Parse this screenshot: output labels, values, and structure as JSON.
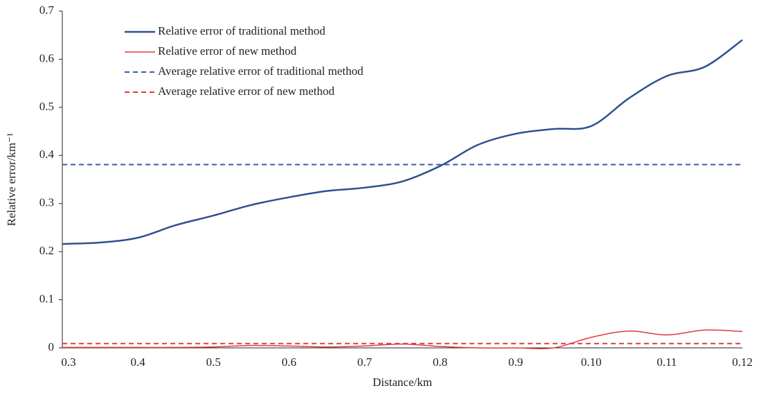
{
  "chart_data": {
    "type": "line",
    "x_label": "Distance/km",
    "y_label": "Relative error/km⁻¹",
    "categories": [
      "0.3",
      null,
      "0.4",
      null,
      "0.5",
      null,
      "0.6",
      null,
      "0.7",
      null,
      "0.8",
      null,
      "0.9",
      null,
      "0.10",
      null,
      "0.11",
      null,
      "0.12"
    ],
    "series": [
      {
        "name": "Relative error of traditional method",
        "color": "#2e4f91",
        "width": 2.5,
        "values": [
          0.216,
          0.219,
          0.229,
          0.255,
          0.275,
          0.297,
          0.313,
          0.326,
          0.333,
          0.346,
          0.378,
          0.422,
          0.445,
          0.455,
          0.461,
          0.519,
          0.565,
          0.584,
          0.64
        ]
      },
      {
        "name": "Relative error of new method",
        "color": "#e0393e",
        "width": 1.5,
        "values": [
          0.001,
          0.001,
          0.001,
          0.001,
          0.002,
          0.005,
          0.004,
          0.002,
          0.004,
          0.008,
          0.003,
          0,
          0,
          0,
          0.022,
          0.035,
          0.027,
          0.037,
          0.034
        ]
      }
    ],
    "reference_lines": [
      {
        "name": "Average relative error of traditional method",
        "color": "#3c5aa6",
        "value": 0.381
      },
      {
        "name": "Average relative error of new method",
        "color": "#e0393e",
        "value": 0.009
      }
    ],
    "ylim": [
      0,
      0.7
    ],
    "yticks": [
      0,
      0.1,
      0.2,
      0.3,
      0.4,
      0.5,
      0.6,
      0.7
    ],
    "grid": false
  }
}
